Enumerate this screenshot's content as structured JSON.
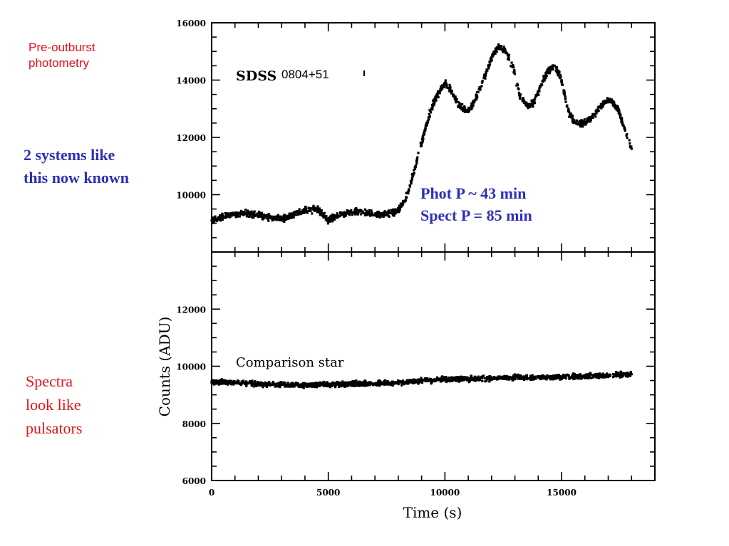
{
  "annotations": {
    "pre_outburst": [
      "Pre-outburst",
      "photometry"
    ],
    "systems": [
      "2 systems like",
      "this now known"
    ],
    "periods": [
      "Phot P ~ 43 min",
      "Spect P = 85 min"
    ],
    "spectra": [
      "Spectra",
      "look like",
      "pulsators"
    ]
  },
  "colors": {
    "red": "#e8101a",
    "blue": "#2e2fb8",
    "ink": "#000000"
  },
  "chart_data": [
    {
      "type": "scatter",
      "panel": "top",
      "label_prefix": "SDSS",
      "label_suffix": "0804+51",
      "xlim": [
        0,
        19000
      ],
      "ylim": [
        8000,
        16000
      ],
      "y_ticks": [
        10000,
        12000,
        14000,
        16000
      ],
      "y_tick_labels": [
        "10000",
        "12000",
        "14000",
        "16000"
      ],
      "series": [
        {
          "name": "SDSS 0804+51",
          "x": [
            0,
            500,
            1000,
            1500,
            2000,
            2500,
            3000,
            3500,
            4000,
            4500,
            5000,
            5300,
            5700,
            6200,
            6700,
            7200,
            7700,
            8000,
            8300,
            8600,
            9000,
            9300,
            9600,
            10000,
            10300,
            10600,
            11000,
            11300,
            11700,
            12000,
            12300,
            12600,
            12900,
            13200,
            13500,
            13800,
            14100,
            14400,
            14700,
            15000,
            15300,
            15600,
            16000,
            16400,
            16800,
            17100,
            17400,
            17700,
            18000
          ],
          "y": [
            9100,
            9250,
            9300,
            9350,
            9300,
            9200,
            9150,
            9300,
            9450,
            9500,
            9100,
            9250,
            9350,
            9400,
            9350,
            9300,
            9350,
            9450,
            9800,
            10600,
            11800,
            12700,
            13400,
            13900,
            13600,
            13100,
            12900,
            13300,
            14100,
            14800,
            15200,
            15000,
            14500,
            13500,
            13100,
            13200,
            13800,
            14300,
            14500,
            14000,
            12900,
            12500,
            12500,
            12800,
            13200,
            13300,
            13000,
            12300,
            11600
          ]
        }
      ]
    },
    {
      "type": "scatter",
      "panel": "bottom",
      "label": "Comparison star",
      "xlim": [
        0,
        19000
      ],
      "ylim": [
        6000,
        14000
      ],
      "xlabel": "Time (s)",
      "ylabel": "Counts (ADU)",
      "x_ticks": [
        0,
        5000,
        10000,
        15000
      ],
      "x_tick_labels": [
        "0",
        "5000",
        "10000",
        "15000"
      ],
      "y_ticks": [
        6000,
        8000,
        10000,
        12000
      ],
      "y_tick_labels": [
        "6000",
        "8000",
        "10000",
        "12000"
      ],
      "series": [
        {
          "name": "Comparison star",
          "x": [
            0,
            1000,
            2000,
            3000,
            4000,
            5000,
            6000,
            7000,
            8000,
            9000,
            10000,
            11000,
            12000,
            13000,
            14000,
            15000,
            16000,
            17000,
            18000
          ],
          "y": [
            9450,
            9420,
            9380,
            9350,
            9340,
            9360,
            9380,
            9400,
            9430,
            9480,
            9550,
            9560,
            9580,
            9600,
            9620,
            9630,
            9650,
            9680,
            9720
          ]
        }
      ]
    }
  ]
}
